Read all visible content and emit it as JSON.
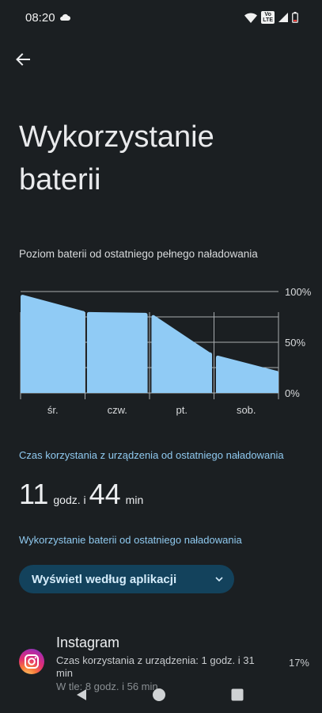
{
  "status": {
    "time": "08:20",
    "icons": [
      "cloud-icon",
      "wifi-icon",
      "volte-icon",
      "signal-icon",
      "battery-icon"
    ],
    "volte_top": "Vo",
    "volte_bottom": "LTE"
  },
  "header": {
    "back_icon": "arrow-back-icon",
    "title": "Wykorzystanie baterii"
  },
  "chart": {
    "caption": "Poziom baterii od ostatniego pełnego naładowania"
  },
  "chart_data": {
    "type": "area",
    "categories": [
      "śr.",
      "czw.",
      "pt.",
      "sob."
    ],
    "y_ticks": [
      "100%",
      "50%",
      "0%"
    ],
    "ylim": [
      0,
      100
    ],
    "color": "#90cbf5",
    "segments": [
      {
        "x": [
          0.0,
          1.0
        ],
        "y": [
          97,
          81
        ]
      },
      {
        "x": [
          1.03,
          1.97
        ],
        "y": [
          80,
          79
        ]
      },
      {
        "x": [
          2.03,
          2.97
        ],
        "y": [
          77,
          40
        ]
      },
      {
        "x": [
          3.03,
          4.0
        ],
        "y": [
          37,
          22
        ]
      }
    ],
    "grid": true
  },
  "screen_time": {
    "label": "Czas korzystania z urządzenia od ostatniego naładowania",
    "hours": "11",
    "hours_unit": "godz. i",
    "minutes": "44",
    "minutes_unit": "min"
  },
  "usage": {
    "label": "Wykorzystanie baterii od ostatniego naładowania",
    "view_button": "Wyświetl według aplikacji",
    "apps": [
      {
        "name": "Instagram",
        "screen_time": "Czas korzystania z urządzenia: 1 godz. i 31 min",
        "background": "W tle: 8 godz. i 56 min",
        "percent": "17%",
        "color": "#e23070"
      }
    ]
  },
  "nav": {
    "back": "nav-back-icon",
    "home": "nav-home-icon",
    "recents": "nav-recents-icon"
  }
}
